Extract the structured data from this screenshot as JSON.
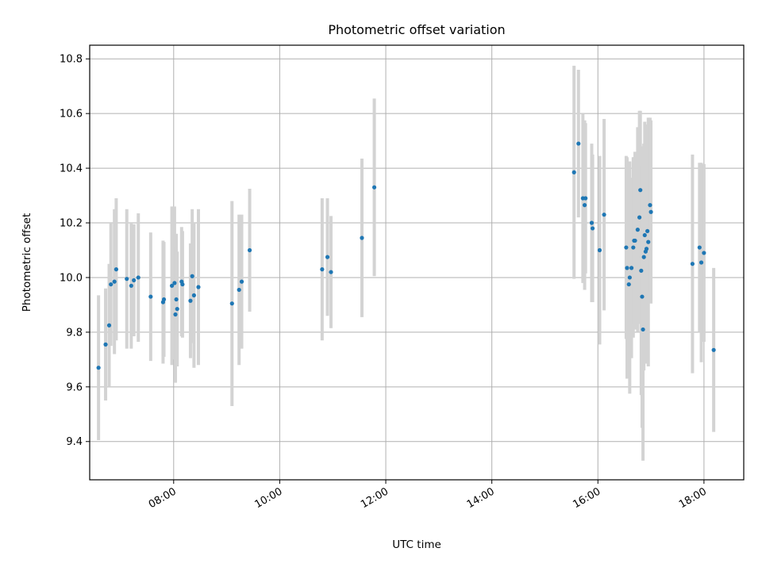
{
  "chart_data": {
    "type": "scatter",
    "title": "Photometric offset variation",
    "xlabel": "UTC time",
    "ylabel": "Photometric offset",
    "x_ticks": [
      "08:00",
      "10:00",
      "12:00",
      "14:00",
      "16:00",
      "18:00"
    ],
    "y_ticks": [
      "9.4",
      "9.6",
      "9.8",
      "10.0",
      "10.2",
      "10.4",
      "10.6",
      "10.8"
    ],
    "xlim": [
      "06:25",
      "18:45"
    ],
    "ylim": [
      9.26,
      10.85
    ],
    "grid": true,
    "colors": {
      "point": "#1f77b4",
      "error_bar": "#d3d3d3",
      "grid": "#b0b0b0"
    },
    "series": [
      {
        "x": [
          "06:35",
          "06:43",
          "06:47",
          "06:49",
          "06:53",
          "06:55",
          "07:07",
          "07:12",
          "07:15",
          "07:20",
          "07:34",
          "07:48",
          "07:49",
          "07:58",
          "08:01",
          "08:02",
          "08:03",
          "08:04",
          "08:09",
          "08:10",
          "08:19",
          "08:21",
          "08:23",
          "08:28",
          "09:06",
          "09:14",
          "09:17",
          "09:26",
          "10:48",
          "10:54",
          "10:58",
          "11:33",
          "11:47",
          "15:33",
          "15:38",
          "15:43",
          "15:45",
          "15:46",
          "15:53",
          "15:54",
          "16:02",
          "16:07",
          "16:32",
          "16:33",
          "16:35",
          "16:36",
          "16:38",
          "16:40",
          "16:41",
          "16:42",
          "16:45",
          "16:47",
          "16:48",
          "16:49",
          "16:50",
          "16:51",
          "16:52",
          "16:53",
          "16:54",
          "16:55",
          "16:56",
          "16:57",
          "16:59",
          "17:00",
          "17:47",
          "17:55",
          "17:57",
          "18:00",
          "18:11"
        ],
        "y": [
          9.67,
          9.755,
          9.825,
          9.975,
          9.985,
          10.03,
          9.995,
          9.97,
          9.99,
          10.0,
          9.93,
          9.91,
          9.92,
          9.97,
          9.98,
          9.865,
          9.92,
          9.885,
          9.985,
          9.975,
          9.915,
          10.005,
          9.935,
          9.965,
          9.905,
          9.955,
          9.985,
          10.1,
          10.03,
          10.075,
          10.02,
          10.145,
          10.33,
          10.385,
          10.49,
          10.29,
          10.265,
          10.29,
          10.2,
          10.18,
          10.1,
          10.23,
          10.11,
          10.035,
          9.975,
          10.0,
          10.035,
          10.11,
          10.135,
          10.135,
          10.175,
          10.22,
          10.32,
          10.025,
          9.93,
          9.81,
          10.075,
          10.155,
          10.095,
          10.105,
          10.17,
          10.13,
          10.265,
          10.24,
          10.05,
          10.11,
          10.055,
          10.09,
          9.735
        ],
        "err": [
          0.265,
          0.205,
          0.225,
          0.225,
          0.265,
          0.26,
          0.255,
          0.23,
          0.205,
          0.235,
          0.235,
          0.225,
          0.21,
          0.29,
          0.28,
          0.25,
          0.24,
          0.21,
          0.2,
          0.195,
          0.21,
          0.245,
          0.265,
          0.285,
          0.375,
          0.275,
          0.245,
          0.225,
          0.26,
          0.215,
          0.205,
          0.29,
          0.325,
          0.39,
          0.27,
          0.31,
          0.31,
          0.275,
          0.29,
          0.27,
          0.345,
          0.35,
          0.335,
          0.405,
          0.335,
          0.425,
          0.33,
          0.33,
          0.305,
          0.325,
          0.375,
          0.39,
          0.29,
          0.455,
          0.48,
          0.48,
          0.415,
          0.415,
          0.39,
          0.42,
          0.39,
          0.455,
          0.32,
          0.335,
          0.4,
          0.31,
          0.365,
          0.325,
          0.3
        ]
      }
    ]
  }
}
